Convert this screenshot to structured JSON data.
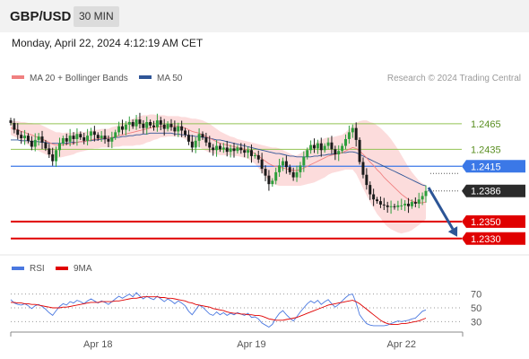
{
  "header": {
    "symbol": "GBP/USD",
    "timeframe": "30 MIN",
    "datetime": "Monday, April 22, 2024 4:12:19 AM CET"
  },
  "colors": {
    "ma20": "#f08080",
    "ma50": "#2f5597",
    "band_fill": "#fbd0d0",
    "bull_candle": "#2e9e3c",
    "bear_candle": "#1a1a1a",
    "resistance": "#92c353",
    "pivot": "#3b78e7",
    "support": "#e00000",
    "arrow": "#2c5596",
    "rsi": "#4a78e0",
    "rsi_ma": "#e00000"
  },
  "chart_data": [
    {
      "type": "candlestick",
      "legend": [
        "MA 20 + Bollinger Bands",
        "MA 50"
      ],
      "legend_position": "top-left",
      "watermark": "Research © 2024 Trading Central",
      "x_ticks": [
        "Apr 18",
        "Apr 19",
        "Apr 22"
      ],
      "ylim": [
        1.2315,
        1.2505
      ],
      "levels": [
        {
          "value": 1.2465,
          "label": "1.2465",
          "kind": "resistance"
        },
        {
          "value": 1.2435,
          "label": "1.2435",
          "kind": "resistance"
        },
        {
          "value": 1.2415,
          "label": "1.2415",
          "kind": "pivot"
        },
        {
          "value": 1.235,
          "label": "1.2350",
          "kind": "support"
        },
        {
          "value": 1.233,
          "label": "1.2330",
          "kind": "support"
        }
      ],
      "last_price": "1.2386",
      "forecast": {
        "from": 1.239,
        "to": 1.233,
        "direction": "down"
      },
      "close_series": [
        1.2466,
        1.2458,
        1.2452,
        1.2448,
        1.2451,
        1.2445,
        1.2438,
        1.2446,
        1.245,
        1.2443,
        1.2436,
        1.2429,
        1.2421,
        1.2434,
        1.2442,
        1.2448,
        1.2444,
        1.2451,
        1.2447,
        1.2453,
        1.2449,
        1.2445,
        1.2451,
        1.2456,
        1.2452,
        1.2448,
        1.2451,
        1.2447,
        1.2444,
        1.2449,
        1.2455,
        1.2462,
        1.2458,
        1.2464,
        1.2467,
        1.2462,
        1.247,
        1.2465,
        1.246,
        1.2467,
        1.2463,
        1.2461,
        1.2469,
        1.2464,
        1.2459,
        1.2465,
        1.2461,
        1.2456,
        1.2462,
        1.2457,
        1.2452,
        1.2444,
        1.2437,
        1.2445,
        1.2453,
        1.2449,
        1.2443,
        1.2437,
        1.2434,
        1.2439,
        1.2435,
        1.2437,
        1.2432,
        1.2436,
        1.2433,
        1.2437,
        1.2434,
        1.2431,
        1.2434,
        1.2427,
        1.2428,
        1.2423,
        1.2412,
        1.2404,
        1.2394,
        1.2398,
        1.2408,
        1.2416,
        1.2421,
        1.2414,
        1.2408,
        1.2402,
        1.2408,
        1.2416,
        1.2426,
        1.2434,
        1.244,
        1.2436,
        1.2442,
        1.2434,
        1.2439,
        1.2443,
        1.2435,
        1.2429,
        1.2433,
        1.2439,
        1.2447,
        1.2455,
        1.246,
        1.2446,
        1.242,
        1.2405,
        1.2393,
        1.2382,
        1.2376,
        1.2374,
        1.237,
        1.2369,
        1.2367,
        1.2368,
        1.2367,
        1.2369,
        1.2369,
        1.2371,
        1.2368,
        1.2373,
        1.2371,
        1.2376,
        1.238,
        1.2386
      ],
      "ma20": [
        1.246,
        1.2459,
        1.2458,
        1.2456,
        1.2455,
        1.2453,
        1.2452,
        1.245,
        1.2449,
        1.2447,
        1.2445,
        1.2443,
        1.2441,
        1.244,
        1.244,
        1.244,
        1.2441,
        1.2441,
        1.2442,
        1.2443,
        1.2444,
        1.2444,
        1.2445,
        1.2446,
        1.2447,
        1.2447,
        1.2448,
        1.2448,
        1.2448,
        1.2449,
        1.245,
        1.2451,
        1.2452,
        1.2453,
        1.2454,
        1.2455,
        1.2456,
        1.2457,
        1.2458,
        1.2459,
        1.246,
        1.2461,
        1.2461,
        1.2462,
        1.2462,
        1.2462,
        1.2462,
        1.2462,
        1.2462,
        1.2461,
        1.246,
        1.2458,
        1.2456,
        1.2455,
        1.2454,
        1.2452,
        1.245,
        1.2448,
        1.2446,
        1.2444,
        1.2442,
        1.2441,
        1.244,
        1.2439,
        1.2438,
        1.2437,
        1.2436,
        1.2435,
        1.2434,
        1.2432,
        1.243,
        1.2427,
        1.2424,
        1.2421,
        1.2418,
        1.2416,
        1.2415,
        1.2414,
        1.2413,
        1.2412,
        1.2411,
        1.241,
        1.241,
        1.2411,
        1.2413,
        1.2415,
        1.2417,
        1.2419,
        1.2421,
        1.2423,
        1.2425,
        1.2427,
        1.2428,
        1.2429,
        1.243,
        1.2431,
        1.2433,
        1.2435,
        1.2437,
        1.2436,
        1.2433,
        1.2429,
        1.2425,
        1.242,
        1.2416,
        1.2411,
        1.2407,
        1.2402,
        1.2398,
        1.2394,
        1.239,
        1.2386,
        1.2382,
        1.2379,
        1.2376,
        1.2374,
        1.2373,
        1.2372,
        1.2372,
        1.2373
      ],
      "ma50": [
        1.2446,
        1.2446,
        1.2446,
        1.2445,
        1.2445,
        1.2445,
        1.2444,
        1.2444,
        1.2444,
        1.2443,
        1.2443,
        1.2442,
        1.2442,
        1.2442,
        1.2442,
        1.2442,
        1.2442,
        1.2443,
        1.2443,
        1.2443,
        1.2444,
        1.2444,
        1.2445,
        1.2445,
        1.2446,
        1.2446,
        1.2447,
        1.2447,
        1.2448,
        1.2448,
        1.2449,
        1.2449,
        1.245,
        1.245,
        1.2451,
        1.2451,
        1.2452,
        1.2452,
        1.2453,
        1.2453,
        1.2454,
        1.2454,
        1.2454,
        1.2454,
        1.2454,
        1.2454,
        1.2454,
        1.2453,
        1.2453,
        1.2452,
        1.2452,
        1.2451,
        1.2451,
        1.245,
        1.245,
        1.2449,
        1.2449,
        1.2448,
        1.2447,
        1.2446,
        1.2446,
        1.2445,
        1.2444,
        1.2443,
        1.2442,
        1.2441,
        1.244,
        1.2439,
        1.2438,
        1.2437,
        1.2436,
        1.2435,
        1.2434,
        1.2433,
        1.2432,
        1.2431,
        1.243,
        1.243,
        1.2429,
        1.2428,
        1.2427,
        1.2427,
        1.2426,
        1.2426,
        1.2426,
        1.2426,
        1.2426,
        1.2427,
        1.2427,
        1.2428,
        1.2428,
        1.2429,
        1.2429,
        1.243,
        1.243,
        1.2431,
        1.2431,
        1.2432,
        1.2432,
        1.2431,
        1.2429,
        1.2427,
        1.2425,
        1.2423,
        1.2421,
        1.2419,
        1.2417,
        1.2415,
        1.2413,
        1.2411,
        1.2409,
        1.2407,
        1.2405,
        1.2403,
        1.2401,
        1.2399,
        1.2397,
        1.2395,
        1.2393,
        1.2392
      ],
      "band_width": [
        0.0008,
        0.0009,
        0.001,
        0.0011,
        0.0012,
        0.0013,
        0.0014,
        0.0015,
        0.0016,
        0.0016,
        0.0016,
        0.0016,
        0.0016,
        0.0015,
        0.0015,
        0.0014,
        0.0014,
        0.0013,
        0.0013,
        0.0012,
        0.0012,
        0.0011,
        0.0011,
        0.0011,
        0.0011,
        0.0011,
        0.0011,
        0.0011,
        0.0011,
        0.0012,
        0.0012,
        0.0013,
        0.0013,
        0.0014,
        0.0015,
        0.0016,
        0.0016,
        0.0017,
        0.0017,
        0.0016,
        0.0016,
        0.0015,
        0.0014,
        0.0013,
        0.0013,
        0.0012,
        0.0012,
        0.0012,
        0.0012,
        0.0012,
        0.0013,
        0.0014,
        0.0015,
        0.0016,
        0.0016,
        0.0017,
        0.0017,
        0.0017,
        0.0016,
        0.0015,
        0.0014,
        0.0013,
        0.0012,
        0.0011,
        0.0011,
        0.001,
        0.001,
        0.001,
        0.001,
        0.0011,
        0.0012,
        0.0014,
        0.0016,
        0.0018,
        0.002,
        0.0021,
        0.0022,
        0.0022,
        0.0021,
        0.002,
        0.0019,
        0.0018,
        0.0018,
        0.0019,
        0.002,
        0.0021,
        0.0022,
        0.0023,
        0.0023,
        0.0023,
        0.0023,
        0.0022,
        0.0021,
        0.0021,
        0.0021,
        0.0021,
        0.0022,
        0.0024,
        0.0026,
        0.003,
        0.0035,
        0.004,
        0.0044,
        0.0047,
        0.005,
        0.0052,
        0.0053,
        0.0054,
        0.0054,
        0.0053,
        0.0051,
        0.0049,
        0.0046,
        0.0042,
        0.0038,
        0.0034,
        0.003,
        0.0026,
        0.0023,
        0.002
      ]
    },
    {
      "type": "line",
      "legend": [
        "RSI",
        "9MA"
      ],
      "legend_position": "top-left",
      "ylim": [
        20,
        80
      ],
      "y_ticks": [
        "70",
        "50",
        "30"
      ],
      "series": [
        {
          "name": "RSI",
          "values": [
            62,
            57,
            55,
            54,
            56,
            53,
            49,
            53,
            55,
            52,
            48,
            43,
            39,
            46,
            52,
            56,
            54,
            59,
            57,
            61,
            59,
            56,
            60,
            63,
            60,
            57,
            60,
            58,
            55,
            59,
            63,
            67,
            64,
            67,
            70,
            66,
            72,
            67,
            63,
            67,
            64,
            62,
            67,
            63,
            59,
            63,
            60,
            56,
            60,
            57,
            53,
            45,
            40,
            47,
            54,
            51,
            46,
            41,
            39,
            44,
            40,
            43,
            39,
            42,
            40,
            43,
            41,
            39,
            42,
            36,
            37,
            34,
            28,
            25,
            22,
            26,
            35,
            42,
            46,
            40,
            35,
            31,
            37,
            44,
            50,
            56,
            60,
            57,
            61,
            55,
            59,
            62,
            56,
            51,
            55,
            60,
            65,
            69,
            70,
            57,
            40,
            33,
            27,
            25,
            24,
            24,
            24,
            24,
            25,
            27,
            29,
            31,
            30,
            31,
            32,
            34,
            35,
            40,
            45,
            47
          ]
        },
        {
          "name": "9MA",
          "values": [
            58,
            58,
            57,
            57,
            56,
            56,
            55,
            55,
            54,
            53,
            52,
            51,
            50,
            50,
            50,
            51,
            51,
            52,
            53,
            54,
            55,
            56,
            57,
            58,
            58,
            58,
            59,
            59,
            59,
            59,
            60,
            60,
            61,
            62,
            63,
            64,
            64,
            65,
            66,
            66,
            66,
            66,
            66,
            65,
            65,
            64,
            64,
            63,
            62,
            61,
            60,
            58,
            57,
            55,
            54,
            53,
            52,
            51,
            49,
            48,
            47,
            46,
            44,
            43,
            42,
            42,
            41,
            41,
            40,
            40,
            39,
            39,
            38,
            36,
            34,
            33,
            32,
            32,
            32,
            33,
            34,
            35,
            36,
            38,
            40,
            42,
            44,
            46,
            48,
            50,
            52,
            54,
            55,
            56,
            57,
            58,
            59,
            60,
            61,
            59,
            56,
            52,
            48,
            44,
            40,
            36,
            32,
            29,
            27,
            26,
            26,
            26,
            27,
            27,
            28,
            29,
            30,
            31,
            33,
            35
          ]
        }
      ]
    }
  ]
}
